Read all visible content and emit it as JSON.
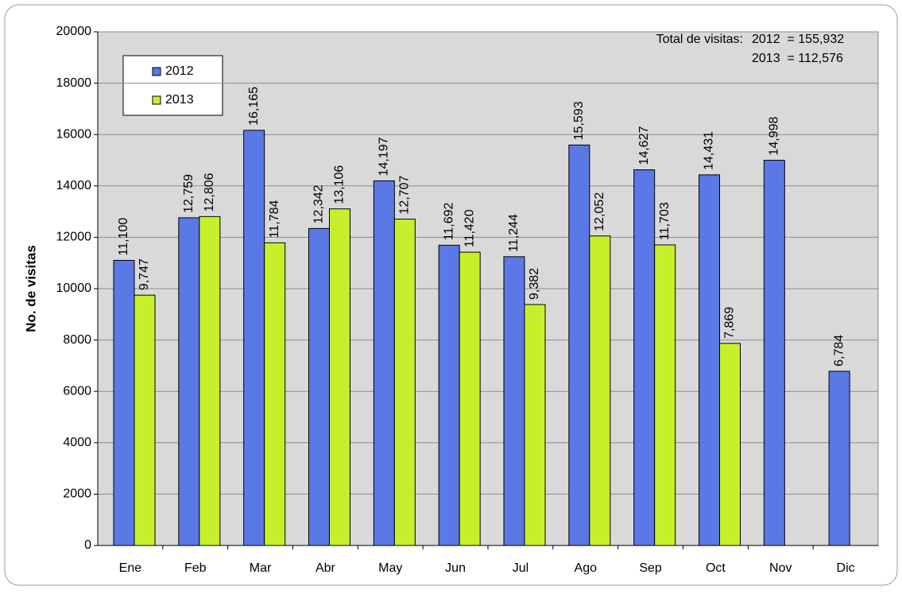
{
  "chart_data": {
    "type": "bar",
    "y_label": "No. de visitas",
    "annotations": [
      "Total de visitas:",
      "2012  = 155,932",
      "2013  = 112,576"
    ],
    "categories": [
      "Ene",
      "Feb",
      "Mar",
      "Abr",
      "May",
      "Jun",
      "Jul",
      "Ago",
      "Sep",
      "Oct",
      "Nov",
      "Dic"
    ],
    "series": [
      {
        "name": "2012",
        "color": "#5a78e6",
        "values": [
          11100,
          12759,
          16165,
          12342,
          14197,
          11692,
          11244,
          15593,
          14627,
          14431,
          14998,
          6784
        ],
        "value_labels": [
          "11,100",
          "12,759",
          "16,165",
          "12,342",
          "14,197",
          "11,692",
          "11,244",
          "15,593",
          "14,627",
          "14,431",
          "14,998",
          "6,784"
        ]
      },
      {
        "name": "2013",
        "color": "#c6f02c",
        "values": [
          9747,
          12806,
          11784,
          13106,
          12707,
          11420,
          9382,
          12052,
          11703,
          7869,
          null,
          null
        ],
        "value_labels": [
          "9,747",
          "12,806",
          "11,784",
          "13,106",
          "12,707",
          "11,420",
          "9,382",
          "12,052",
          "11,703",
          "7,869",
          null,
          null
        ]
      }
    ],
    "ylim": [
      0,
      20000
    ],
    "yticks": [
      0,
      2000,
      4000,
      6000,
      8000,
      10000,
      12000,
      14000,
      16000,
      18000,
      20000
    ],
    "grid": true,
    "legend": "top-left"
  }
}
